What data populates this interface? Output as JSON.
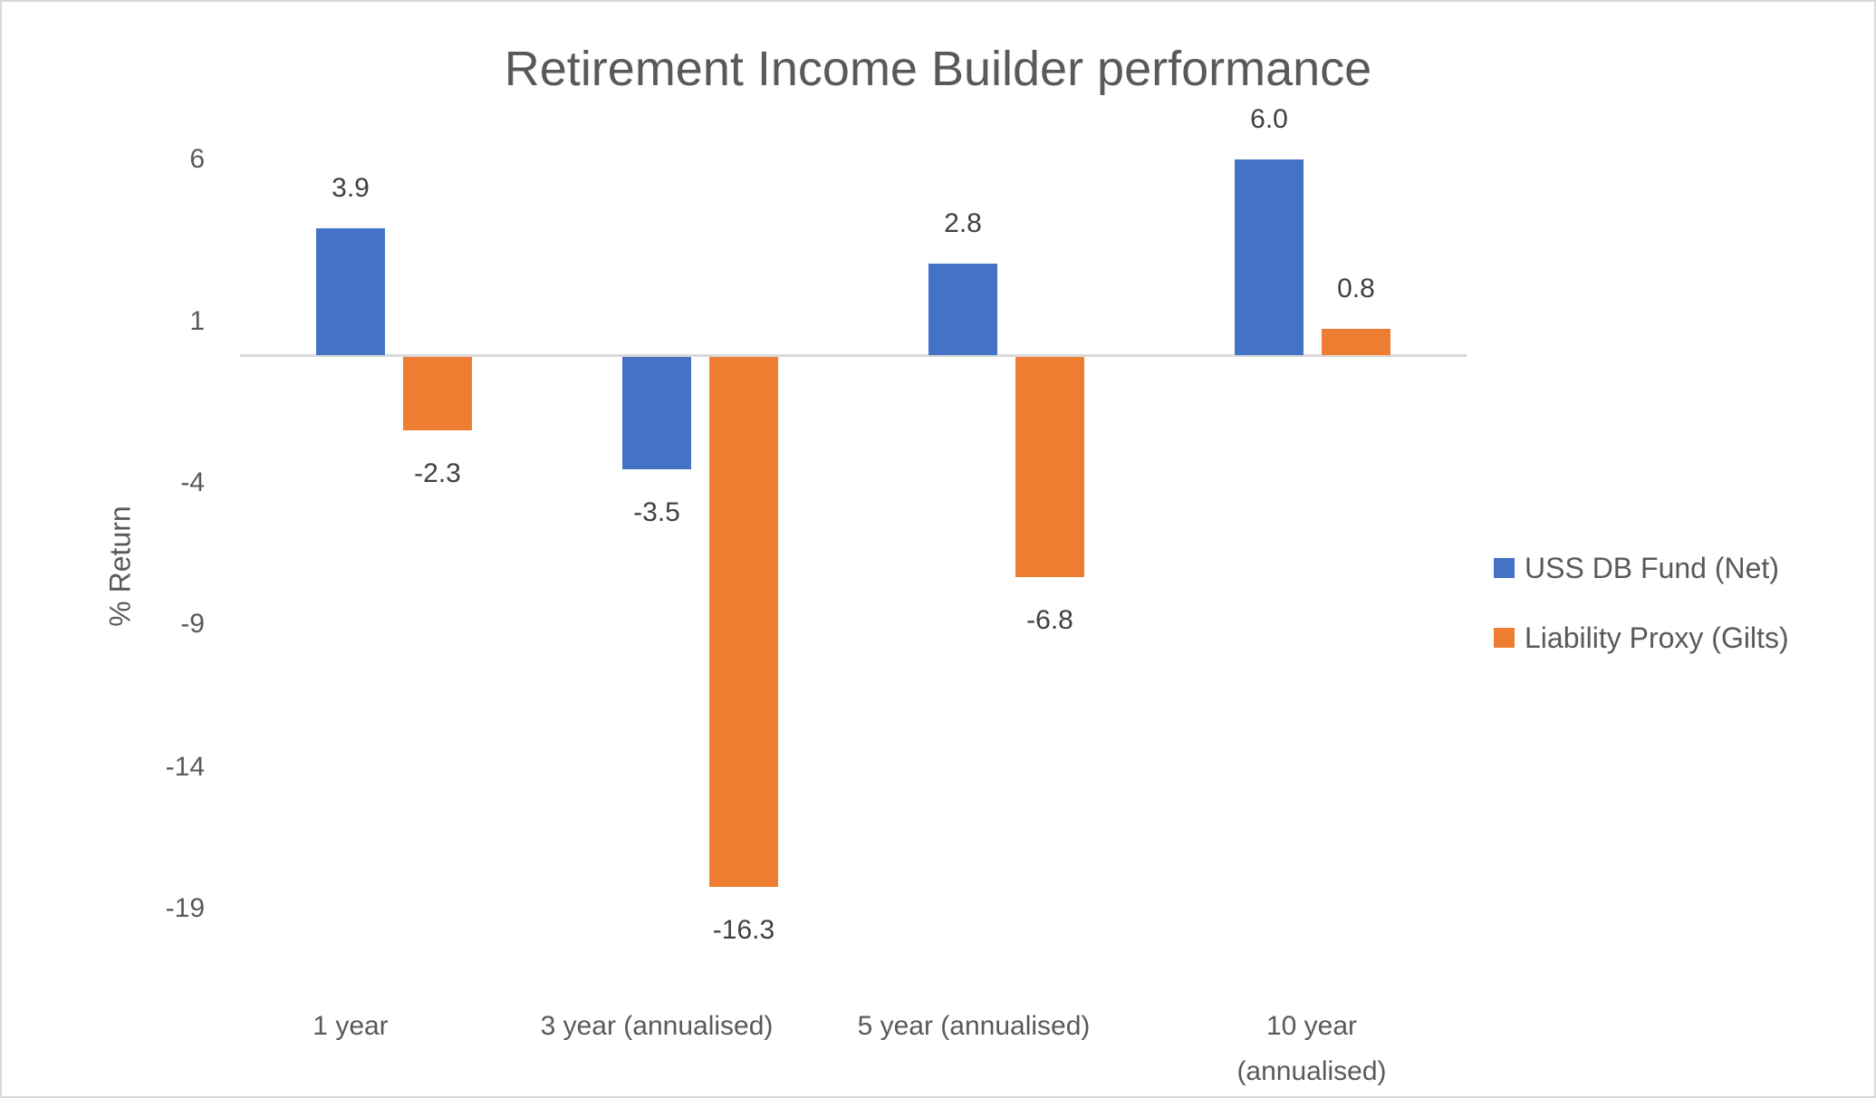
{
  "chart_data": {
    "type": "bar",
    "title": "Retirement Income Builder performance",
    "xlabel": "",
    "ylabel": "% Return",
    "categories": [
      "1 year",
      "3 year (annualised)",
      "5 year (annualised)",
      "10 year (annualised)"
    ],
    "series": [
      {
        "name": "USS DB Fund (Net)",
        "color": "#4472c4",
        "values": [
          3.9,
          -3.5,
          2.8,
          6.0
        ]
      },
      {
        "name": "Liability Proxy (Gilts)",
        "color": "#ed7d31",
        "values": [
          -2.3,
          -16.3,
          -6.8,
          0.8
        ]
      }
    ],
    "data_labels": [
      [
        "3.9",
        "-3.5",
        "2.8",
        "6.0"
      ],
      [
        "-2.3",
        "-16.3",
        "-6.8",
        "0.8"
      ]
    ],
    "y_ticks": [
      "6",
      "1",
      "-4",
      "-9",
      "-14",
      "-19"
    ],
    "ylim": [
      -19,
      6
    ],
    "grid": false,
    "legend_position": "right"
  },
  "header": {
    "title": "Retirement Income Builder performance"
  },
  "axis": {
    "ylabel": "% Return",
    "yticks": [
      "6",
      "1",
      "-4",
      "-9",
      "-14",
      "-19"
    ],
    "categories": [
      {
        "line1": "1 year",
        "line2": ""
      },
      {
        "line1": "3 year (annualised)",
        "line2": ""
      },
      {
        "line1": "5 year (annualised)",
        "line2": ""
      },
      {
        "line1": "10 year",
        "line2": "(annualised)"
      }
    ]
  },
  "legend": {
    "items": [
      {
        "label": "USS DB Fund (Net)",
        "color": "#4472c4"
      },
      {
        "label": "Liability Proxy (Gilts)",
        "color": "#ed7d31"
      }
    ]
  }
}
